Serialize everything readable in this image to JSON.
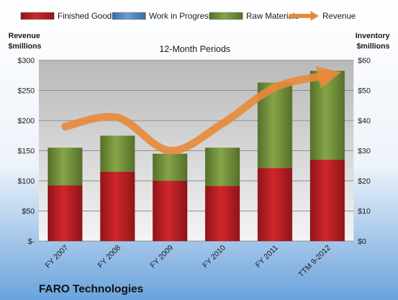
{
  "company": "FARO Technologies",
  "chart_data": {
    "type": "bar",
    "stacked": true,
    "subtitle": "12-Month Periods",
    "categories": [
      "FY 2007",
      "FY 2008",
      "FY 2009",
      "FY 2010",
      "FY 2011",
      "TTM 9-2012"
    ],
    "series": [
      {
        "name": "Finished Goods",
        "axis": "right",
        "color": "#c0242a",
        "values": [
          18.5,
          23,
          20,
          18.3,
          24.3,
          27
        ]
      },
      {
        "name": "Work in Progress",
        "axis": "right",
        "color": "#4f81bd",
        "values": [
          0,
          0,
          0,
          0,
          0,
          0
        ]
      },
      {
        "name": "Raw Materials",
        "axis": "right",
        "color": "#77933c",
        "values": [
          12.5,
          12,
          9,
          12.7,
          28.3,
          29.5
        ]
      },
      {
        "name": "Revenue",
        "type": "line",
        "axis": "left",
        "color": "#e8893a",
        "values": [
          190,
          205,
          150,
          195,
          255,
          275
        ]
      }
    ],
    "left_axis": {
      "title_lines": [
        "Revenue",
        "$millions"
      ],
      "range": [
        0,
        300
      ],
      "ticks": [
        0,
        50,
        100,
        150,
        200,
        250,
        300
      ],
      "tick_labels": [
        "$-",
        "$50",
        "$100",
        "$150",
        "$200",
        "$250",
        "$300"
      ]
    },
    "right_axis": {
      "title_lines": [
        "Inventory",
        "$millions"
      ],
      "range": [
        0,
        60
      ],
      "ticks": [
        0,
        10,
        20,
        30,
        40,
        50,
        60
      ],
      "tick_labels": [
        "$0",
        "$10",
        "$20",
        "$30",
        "$40",
        "$50",
        "$60"
      ]
    },
    "grid": true,
    "legend_position": "top"
  },
  "colors": {
    "background_top": "#ffffff",
    "background_bottom": "#6aa3dd",
    "plot_area_top": "#b9b9b9",
    "plot_area_bottom": "#f4f4f4",
    "gridline": "#8a8a8a"
  }
}
